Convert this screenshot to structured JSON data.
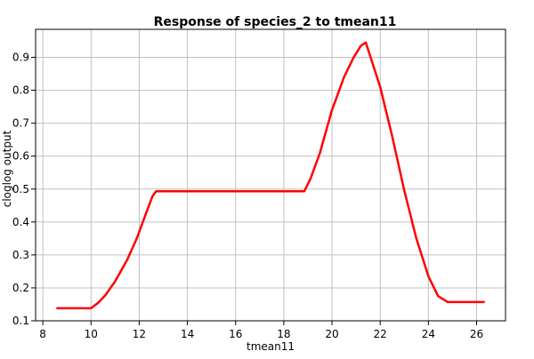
{
  "chart_data": {
    "type": "line",
    "title": "Response of species_2 to tmean11",
    "xlabel": "tmean11",
    "ylabel": "cloglog output",
    "xlim": [
      7.7,
      27.2
    ],
    "ylim": [
      0.1,
      0.985
    ],
    "xticks": [
      8,
      10,
      12,
      14,
      16,
      18,
      20,
      22,
      24,
      26
    ],
    "yticks": [
      0.1,
      0.2,
      0.3,
      0.4,
      0.5,
      0.6,
      0.7,
      0.8,
      0.9
    ],
    "grid": true,
    "series": [
      {
        "color": "#ff0000",
        "x": [
          8.6,
          9.0,
          9.5,
          10.0,
          10.3,
          10.6,
          11.0,
          11.5,
          11.9,
          12.3,
          12.55,
          12.7,
          13.0,
          14.0,
          15.0,
          16.0,
          17.0,
          18.0,
          18.85,
          19.1,
          19.5,
          20.0,
          20.5,
          20.9,
          21.2,
          21.4,
          21.6,
          22.0,
          22.5,
          23.0,
          23.5,
          24.0,
          24.4,
          24.8,
          25.0,
          25.5,
          26.0,
          26.3
        ],
        "y": [
          0.138,
          0.138,
          0.138,
          0.138,
          0.155,
          0.178,
          0.22,
          0.285,
          0.35,
          0.43,
          0.478,
          0.493,
          0.493,
          0.493,
          0.493,
          0.493,
          0.493,
          0.493,
          0.493,
          0.53,
          0.61,
          0.74,
          0.84,
          0.9,
          0.935,
          0.945,
          0.9,
          0.81,
          0.66,
          0.495,
          0.35,
          0.235,
          0.175,
          0.157,
          0.157,
          0.157,
          0.157,
          0.157
        ]
      }
    ]
  }
}
